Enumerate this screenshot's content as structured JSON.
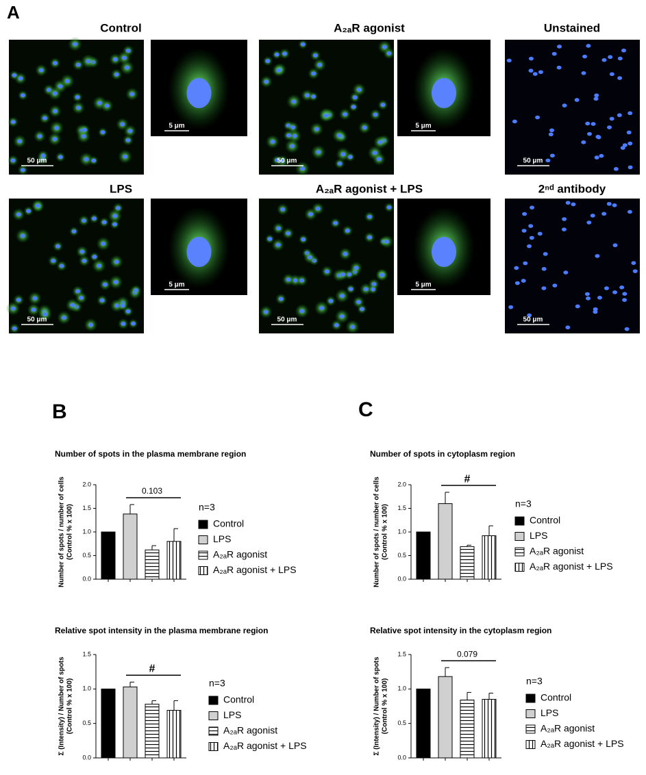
{
  "panels": {
    "a": "A",
    "b": "B",
    "c": "C"
  },
  "micrographs": [
    {
      "title": "Control",
      "scale_main": "50 μm",
      "scale_inset": "5 μm"
    },
    {
      "title": "A₂ₐR agonist",
      "scale_main": "50 μm",
      "scale_inset": "5 μm"
    },
    {
      "title": "Unstained",
      "scale_main": "50 μm"
    },
    {
      "title": "LPS",
      "scale_main": "50 μm",
      "scale_inset": "5 μm"
    },
    {
      "title": "A₂ₐR agonist + LPS",
      "scale_main": "50 μm",
      "scale_inset": "5 μm"
    },
    {
      "title": "2ⁿᵈ antibody",
      "scale_main": "50 μm"
    }
  ],
  "chart_data": [
    {
      "type": "bar",
      "title": "Number of spots in the plasma membrane region",
      "y_label": [
        "Number of spots / number of cells",
        "(Control % x 100)"
      ],
      "categories": [
        "Control",
        "LPS",
        "A₂ₐR agonist",
        "A₂ₐR agonist + LPS"
      ],
      "values": [
        1.0,
        1.38,
        0.62,
        0.8
      ],
      "errors": [
        0,
        0.2,
        0.09,
        0.27
      ],
      "patterns": [
        "solid-black",
        "solid-gray",
        "horizontal",
        "vertical"
      ],
      "ylim": [
        0,
        2
      ],
      "yticks": [
        {
          "value": 0,
          "label": "0.0"
        },
        {
          "value": 0.5,
          "label": "0.5"
        },
        {
          "value": 1,
          "label": "1.0"
        },
        {
          "value": 1.5,
          "label": "1.5"
        },
        {
          "value": 2,
          "label": "2.0"
        }
      ],
      "n_label": "n=3",
      "annotation": {
        "text": "0.103",
        "from": 1,
        "to": 3
      }
    },
    {
      "type": "bar",
      "title": "Number of spots in cytoplasm region",
      "y_label": [
        "Number of spots / number of cells",
        "(Control % x 100)"
      ],
      "categories": [
        "Control",
        "LPS",
        "A₂ₐR agonist",
        "A₂ₐR agonist + LPS"
      ],
      "values": [
        1.0,
        1.6,
        0.69,
        0.92
      ],
      "errors": [
        0,
        0.24,
        0.03,
        0.21
      ],
      "patterns": [
        "solid-black",
        "solid-gray",
        "horizontal",
        "vertical"
      ],
      "ylim": [
        0,
        2
      ],
      "yticks": [
        {
          "value": 0,
          "label": "0.0"
        },
        {
          "value": 0.5,
          "label": "0.5"
        },
        {
          "value": 1,
          "label": "1.0"
        },
        {
          "value": 1.5,
          "label": "1.5"
        },
        {
          "value": 2,
          "label": "2.0"
        }
      ],
      "n_label": "n=3",
      "annotation": {
        "text": "#",
        "from": 1,
        "to": 3
      }
    },
    {
      "type": "bar",
      "title": "Relative spot intensity in the plasma membrane region",
      "y_label": [
        "Σ (Intensity) / Number of spots",
        "(Control % x 100)"
      ],
      "categories": [
        "Control",
        "LPS",
        "A₂ₐR agonist",
        "A₂ₐR agonist + LPS"
      ],
      "values": [
        1.0,
        1.03,
        0.78,
        0.69
      ],
      "errors": [
        0,
        0.07,
        0.05,
        0.14
      ],
      "patterns": [
        "solid-black",
        "solid-gray",
        "horizontal",
        "vertical"
      ],
      "ylim": [
        0,
        1.5
      ],
      "yticks": [
        {
          "value": 0,
          "label": "0.0"
        },
        {
          "value": 0.5,
          "label": "0.5"
        },
        {
          "value": 1,
          "label": "1.0"
        },
        {
          "value": 1.5,
          "label": "1.5"
        }
      ],
      "n_label": "n=3",
      "annotation": {
        "text": "#",
        "from": 1,
        "to": 3
      }
    },
    {
      "type": "bar",
      "title": "Relative spot intensity in the cytoplasm region",
      "y_label": [
        "Σ (Intensity) / Number of spots",
        "(Control % x 100)"
      ],
      "categories": [
        "Control",
        "LPS",
        "A₂ₐR agonist",
        "A₂ₐR agonist + LPS"
      ],
      "values": [
        1.0,
        1.18,
        0.84,
        0.85
      ],
      "errors": [
        0,
        0.13,
        0.11,
        0.09
      ],
      "patterns": [
        "solid-black",
        "solid-gray",
        "horizontal",
        "vertical"
      ],
      "ylim": [
        0,
        1.5
      ],
      "yticks": [
        {
          "value": 0,
          "label": "0.0"
        },
        {
          "value": 0.5,
          "label": "0.5"
        },
        {
          "value": 1,
          "label": "1.0"
        },
        {
          "value": 1.5,
          "label": "1.5"
        }
      ],
      "n_label": "n=3",
      "annotation": {
        "text": "0.079",
        "from": 1,
        "to": 3
      }
    }
  ]
}
